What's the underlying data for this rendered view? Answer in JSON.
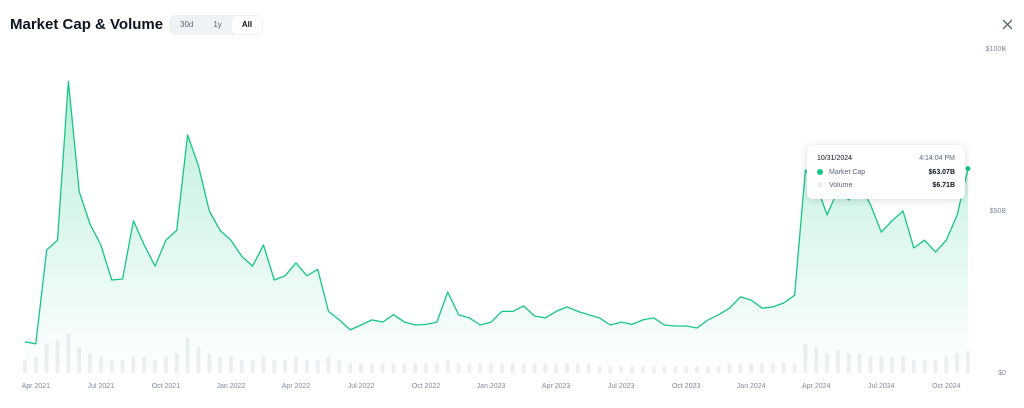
{
  "header": {
    "title": "Market Cap & Volume",
    "range_options": [
      "30d",
      "1y",
      "All"
    ],
    "selected_range": "All"
  },
  "chart_data": {
    "type": "area",
    "categories": [
      null,
      "Apr 2021",
      null,
      null,
      null,
      null,
      null,
      "Jul 2021",
      null,
      null,
      null,
      null,
      null,
      "Oct 2021",
      null,
      null,
      null,
      null,
      null,
      "Jan 2022",
      null,
      null,
      null,
      null,
      null,
      "Apr 2022",
      null,
      null,
      null,
      null,
      null,
      "Jul 2022",
      null,
      null,
      null,
      null,
      null,
      "Oct 2022",
      null,
      null,
      null,
      null,
      null,
      "Jan 2023",
      null,
      null,
      null,
      null,
      null,
      "Apr 2023",
      null,
      null,
      null,
      null,
      null,
      "Jul 2023",
      null,
      null,
      null,
      null,
      null,
      "Oct 2023",
      null,
      null,
      null,
      null,
      null,
      "Jan 2024",
      null,
      null,
      null,
      null,
      null,
      "Apr 2024",
      null,
      null,
      null,
      null,
      null,
      "Jul 2024",
      null,
      null,
      null,
      null,
      null,
      "Oct 2024",
      null,
      null
    ],
    "series": [
      {
        "name": "Market Cap",
        "color": "#16c784",
        "values": [
          9.6,
          9,
          38,
          41,
          90,
          56,
          46,
          39.5,
          28.7,
          29,
          47,
          39.5,
          33,
          41,
          44,
          73.5,
          64,
          50,
          44,
          41,
          36,
          33,
          39.5,
          28.7,
          30,
          34,
          30,
          32,
          19,
          16.4,
          13.3,
          14.8,
          16.4,
          15.7,
          18,
          15.7,
          14.8,
          15,
          15.7,
          25,
          18,
          17,
          14.8,
          15.7,
          19,
          19,
          20.7,
          17.6,
          17,
          19,
          20.4,
          19,
          18,
          17,
          14.8,
          15.7,
          15,
          16.4,
          17,
          14.8,
          14.5,
          14.5,
          13.9,
          16.4,
          18,
          20,
          23.5,
          22.5,
          20,
          20.4,
          21.6,
          24,
          62.7,
          58,
          48.8,
          56.5,
          53.4,
          58,
          52,
          43.5,
          47,
          50,
          38.6,
          41,
          37.3,
          41,
          48.8,
          63.07
        ]
      },
      {
        "name": "Volume",
        "color": "#eceff2",
        "values": [
          4,
          5,
          9,
          10,
          12,
          8,
          6,
          5,
          4,
          4,
          5,
          5,
          4,
          5,
          6,
          11,
          8,
          6,
          5,
          5,
          4,
          4,
          5,
          4,
          4,
          5,
          4,
          4,
          5,
          4,
          3,
          3,
          3,
          3,
          3,
          3,
          3,
          3,
          3,
          4,
          3,
          3,
          3,
          3,
          3,
          3,
          3,
          3,
          3,
          3,
          3,
          3,
          3,
          2,
          2,
          2,
          2,
          2,
          2,
          2,
          2,
          2,
          2,
          2,
          2,
          3,
          3,
          3,
          3,
          3,
          3,
          3,
          9,
          8,
          6,
          7,
          6,
          6,
          5,
          5,
          5,
          5,
          4,
          4,
          4,
          5,
          6,
          6.71
        ]
      }
    ],
    "ylim": [
      0,
      100
    ],
    "yticks": [
      {
        "value": 0,
        "label": "$0"
      },
      {
        "value": 50,
        "label": "$50B"
      },
      {
        "value": 100,
        "label": "$100B"
      }
    ],
    "grid": false
  },
  "tooltip": {
    "date": "10/31/2024",
    "time": "4:14:04 PM",
    "values": [
      "$63.07B",
      "$6.71B"
    ]
  }
}
